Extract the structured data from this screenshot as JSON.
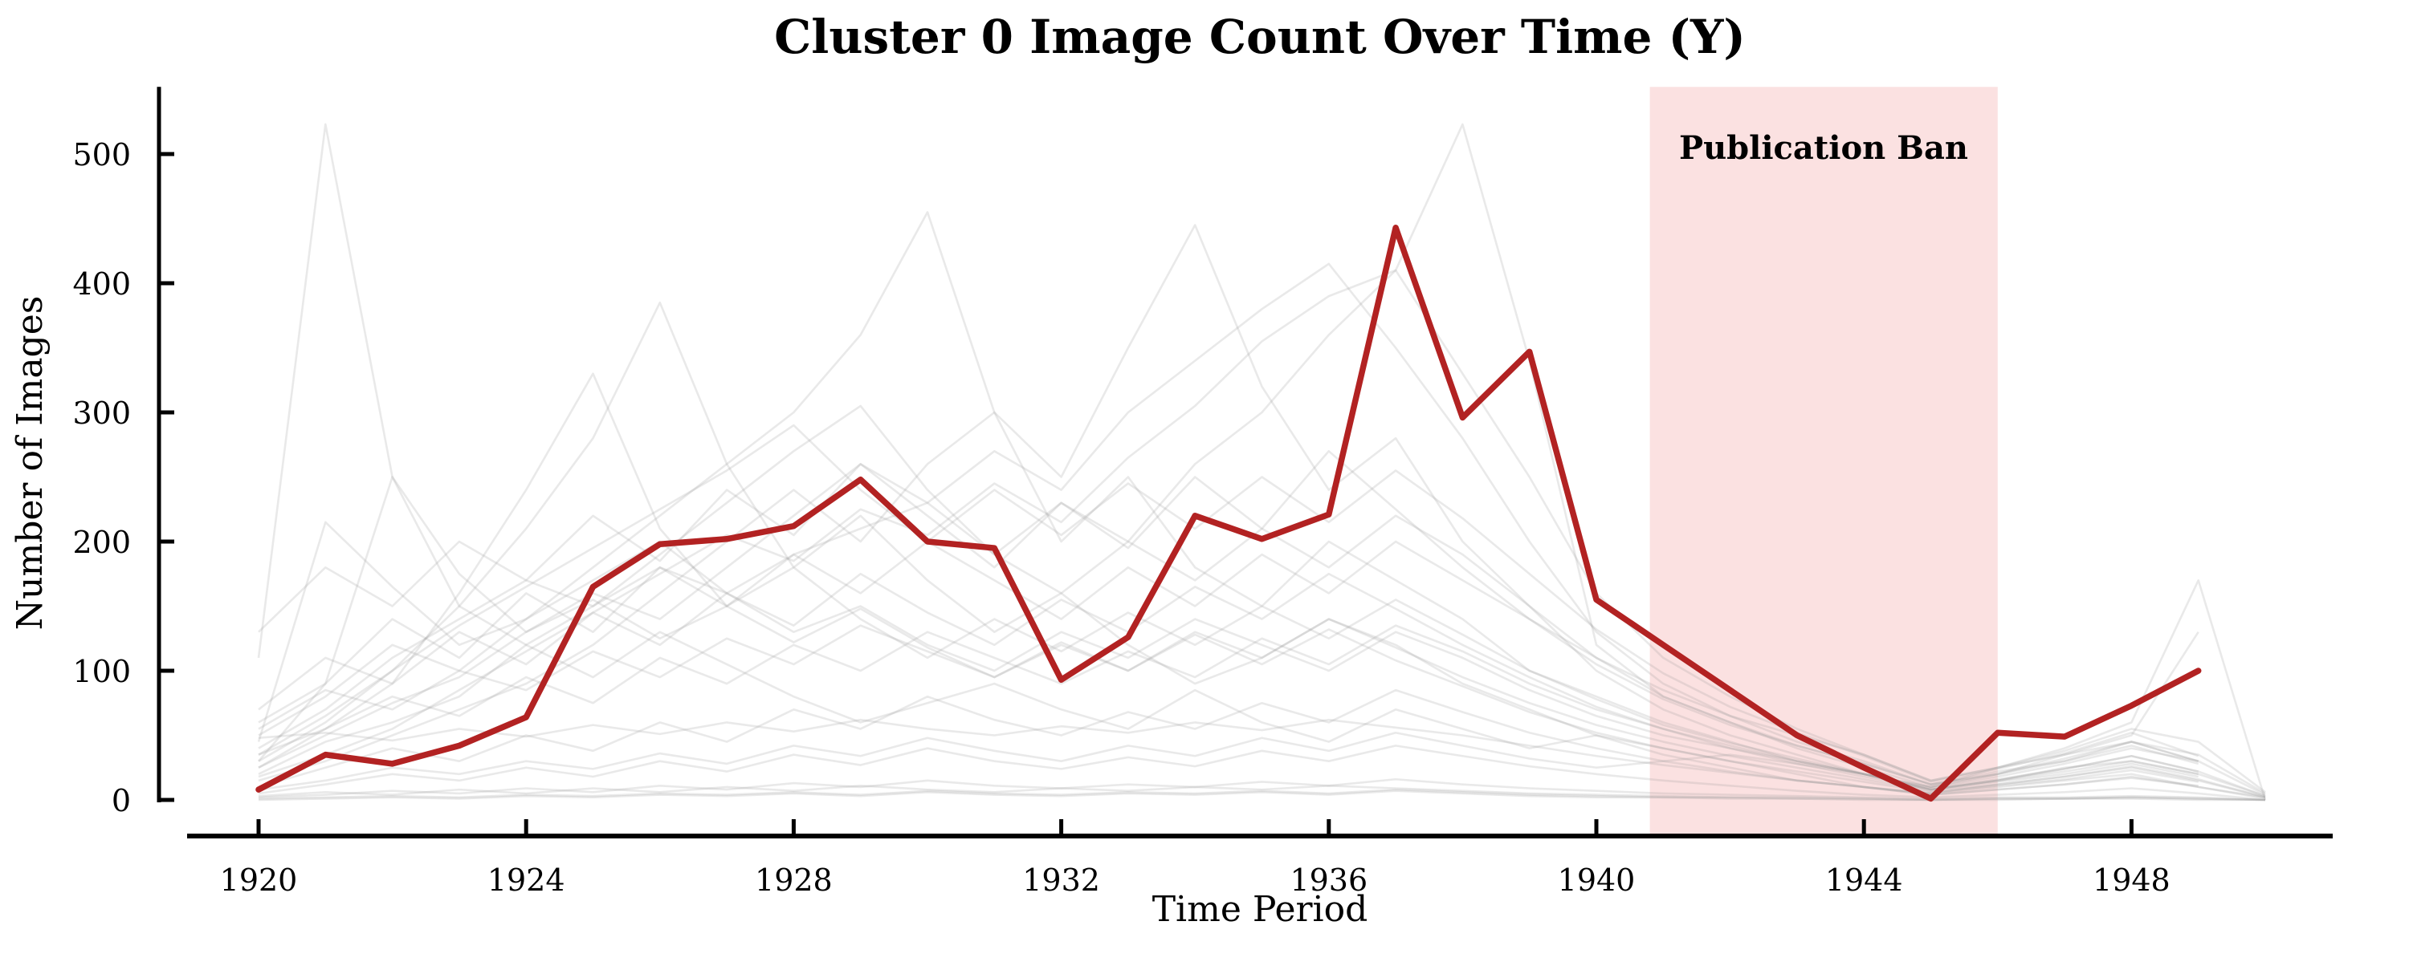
{
  "annotation": {
    "label": "Publication Ban",
    "color": "#7f7f7f"
  },
  "colors": {
    "highlight_line": "#B22222",
    "background_line": "#999999",
    "ban_fill": "#FBE1E1",
    "axis": "#000000",
    "ban_text": "#7f7f7f"
  },
  "chart_data": {
    "type": "line",
    "title": "Cluster 0 Image Count Over Time (Y)",
    "xlabel": "Time Period",
    "ylabel": "Number of Images",
    "xticks": [
      1920,
      1924,
      1928,
      1932,
      1936,
      1940,
      1944,
      1948
    ],
    "yticks": [
      0,
      100,
      200,
      300,
      400,
      500
    ],
    "xlim": [
      1918.9,
      1951.0
    ],
    "ylim": [
      0,
      552
    ],
    "grid": false,
    "legend": null,
    "ban_span": {
      "start": 1940.8,
      "end": 1946.0,
      "label": "Publication Ban"
    },
    "x_start_year": 1920,
    "series": [
      {
        "name": "Cluster 0",
        "color": "#B22222",
        "x": [
          1920,
          1921,
          1922,
          1923,
          1924,
          1925,
          1926,
          1927,
          1928,
          1929,
          1930,
          1931,
          1932,
          1933,
          1934,
          1935,
          1936,
          1937,
          1938,
          1939,
          1940,
          1941,
          1942,
          1943,
          1944,
          1945,
          1946,
          1947,
          1948,
          1949
        ],
        "values": [
          8,
          35,
          28,
          42,
          64,
          165,
          198,
          202,
          212,
          248,
          200,
          195,
          93,
          126,
          220,
          202,
          221,
          443,
          296,
          347,
          155,
          120,
          85,
          50,
          25,
          1,
          52,
          49,
          73,
          100
        ]
      }
    ],
    "background_series": [
      [
        110,
        523,
        250,
        150,
        120,
        95,
        130,
        105,
        80,
        60,
        75,
        90,
        70,
        55,
        85,
        60,
        45,
        70,
        55,
        40,
        50,
        35,
        25,
        15,
        10,
        5,
        10,
        15,
        20,
        10,
        2
      ],
      [
        20,
        45,
        60,
        80,
        120,
        150,
        180,
        160,
        190,
        210,
        230,
        190,
        160,
        200,
        260,
        300,
        360,
        410,
        523,
        340,
        120,
        80,
        60,
        40,
        25,
        10,
        20,
        35,
        50,
        130,
        null
      ],
      [
        50,
        80,
        120,
        100,
        140,
        180,
        220,
        260,
        300,
        360,
        455,
        300,
        200,
        250,
        180,
        150,
        200,
        170,
        140,
        100,
        80,
        60,
        45,
        30,
        20,
        8,
        15,
        25,
        30,
        20,
        3
      ],
      [
        30,
        60,
        100,
        150,
        210,
        280,
        385,
        260,
        180,
        220,
        170,
        130,
        160,
        120,
        90,
        110,
        140,
        120,
        90,
        70,
        50,
        40,
        30,
        20,
        10,
        5,
        12,
        18,
        25,
        15,
        2
      ],
      [
        15,
        30,
        50,
        70,
        90,
        120,
        160,
        200,
        240,
        200,
        260,
        300,
        250,
        350,
        445,
        320,
        240,
        280,
        200,
        150,
        100,
        70,
        50,
        35,
        20,
        10,
        18,
        28,
        40,
        30,
        null
      ],
      [
        25,
        50,
        75,
        95,
        130,
        160,
        140,
        180,
        220,
        260,
        230,
        270,
        240,
        300,
        340,
        380,
        415,
        350,
        280,
        200,
        130,
        90,
        65,
        45,
        30,
        12,
        22,
        30,
        45,
        35,
        5
      ],
      [
        45,
        215,
        165,
        120,
        140,
        170,
        200,
        160,
        130,
        150,
        120,
        100,
        130,
        110,
        140,
        120,
        100,
        130,
        110,
        85,
        65,
        50,
        40,
        28,
        18,
        8,
        14,
        20,
        28,
        18,
        null
      ],
      [
        60,
        90,
        140,
        110,
        160,
        130,
        180,
        150,
        190,
        160,
        200,
        170,
        140,
        180,
        150,
        190,
        160,
        200,
        170,
        140,
        110,
        85,
        65,
        50,
        35,
        15,
        25,
        35,
        45,
        30,
        4
      ],
      [
        35,
        55,
        80,
        65,
        95,
        75,
        110,
        90,
        120,
        100,
        130,
        110,
        90,
        115,
        95,
        125,
        105,
        135,
        115,
        90,
        70,
        55,
        40,
        30,
        20,
        8,
        15,
        22,
        30,
        20,
        null
      ],
      [
        10,
        25,
        40,
        30,
        50,
        38,
        60,
        45,
        70,
        55,
        80,
        62,
        50,
        68,
        55,
        75,
        60,
        85,
        68,
        52,
        40,
        30,
        22,
        15,
        10,
        4,
        8,
        12,
        18,
        10,
        1
      ],
      [
        5,
        12,
        20,
        15,
        25,
        18,
        30,
        22,
        35,
        27,
        40,
        30,
        24,
        33,
        26,
        38,
        30,
        42,
        34,
        26,
        20,
        15,
        11,
        7,
        4,
        2,
        4,
        6,
        9,
        5,
        0
      ],
      [
        2,
        4,
        7,
        5,
        9,
        6,
        11,
        8,
        13,
        10,
        15,
        11,
        9,
        12,
        10,
        14,
        11,
        16,
        12,
        9,
        7,
        5,
        4,
        3,
        2,
        1,
        2,
        2,
        3,
        2,
        0
      ],
      [
        1,
        2,
        3,
        2,
        4,
        3,
        5,
        4,
        6,
        4,
        7,
        5,
        4,
        6,
        5,
        7,
        5,
        8,
        6,
        4,
        3,
        2,
        2,
        1,
        1,
        0,
        1,
        1,
        2,
        1,
        0
      ],
      [
        40,
        70,
        110,
        140,
        170,
        150,
        190,
        230,
        270,
        305,
        240,
        190,
        230,
        200,
        170,
        210,
        180,
        220,
        190,
        150,
        110,
        80,
        60,
        42,
        28,
        12,
        20,
        30,
        42,
        28,
        null
      ],
      [
        18,
        35,
        55,
        85,
        115,
        145,
        175,
        205,
        185,
        225,
        205,
        245,
        215,
        265,
        305,
        355,
        390,
        410,
        330,
        250,
        160,
        110,
        80,
        55,
        35,
        15,
        25,
        38,
        55,
        45,
        6
      ],
      [
        8,
        15,
        25,
        20,
        30,
        24,
        36,
        28,
        42,
        34,
        48,
        38,
        30,
        42,
        34,
        48,
        38,
        52,
        42,
        32,
        25,
        30,
        35,
        28,
        20,
        10,
        25,
        40,
        60,
        170,
        0
      ],
      [
        55,
        85,
        70,
        100,
        85,
        115,
        95,
        125,
        105,
        135,
        115,
        95,
        120,
        100,
        130,
        110,
        140,
        118,
        95,
        75,
        58,
        45,
        34,
        25,
        16,
        7,
        12,
        18,
        26,
        16,
        2
      ],
      [
        70,
        110,
        90,
        130,
        105,
        145,
        120,
        160,
        135,
        175,
        145,
        120,
        155,
        130,
        165,
        140,
        175,
        148,
        120,
        95,
        72,
        55,
        42,
        30,
        20,
        8,
        15,
        24,
        34,
        22,
        null
      ],
      [
        130,
        180,
        150,
        200,
        170,
        220,
        185,
        240,
        205,
        260,
        220,
        180,
        230,
        195,
        250,
        210,
        270,
        225,
        180,
        140,
        105,
        78,
        58,
        42,
        28,
        12,
        20,
        32,
        45,
        30,
        null
      ],
      [
        25,
        55,
        90,
        160,
        240,
        330,
        210,
        150,
        180,
        140,
        110,
        140,
        115,
        145,
        120,
        150,
        125,
        155,
        128,
        100,
        78,
        58,
        44,
        32,
        20,
        9,
        16,
        24,
        34,
        22,
        3
      ],
      [
        35,
        65,
        100,
        135,
        165,
        195,
        225,
        255,
        290,
        240,
        200,
        240,
        205,
        245,
        210,
        250,
        215,
        255,
        218,
        175,
        132,
        98,
        72,
        52,
        34,
        14,
        24,
        36,
        52,
        34,
        null
      ],
      [
        48,
        52,
        46,
        55,
        49,
        58,
        51,
        60,
        53,
        62,
        55,
        50,
        57,
        52,
        60,
        54,
        62,
        56,
        50,
        42,
        34,
        27,
        21,
        15,
        10,
        4,
        8,
        12,
        17,
        11,
        null
      ],
      [
        30,
        90,
        250,
        175,
        130,
        155,
        125,
        150,
        122,
        148,
        118,
        95,
        122,
        100,
        128,
        105,
        132,
        108,
        88,
        68,
        52,
        40,
        30,
        22,
        14,
        6,
        11,
        16,
        23,
        14,
        null
      ],
      [
        3,
        6,
        4,
        8,
        5,
        9,
        6,
        10,
        7,
        11,
        8,
        6,
        9,
        7,
        10,
        8,
        11,
        9,
        7,
        5,
        4,
        3,
        2,
        2,
        1,
        0,
        1,
        1,
        2,
        1,
        0
      ],
      [
        0,
        1,
        2,
        1,
        3,
        2,
        4,
        3,
        5,
        3,
        6,
        4,
        3,
        5,
        4,
        6,
        4,
        7,
        5,
        3,
        2,
        2,
        1,
        1,
        0,
        0,
        0,
        1,
        1,
        0,
        0
      ]
    ]
  }
}
